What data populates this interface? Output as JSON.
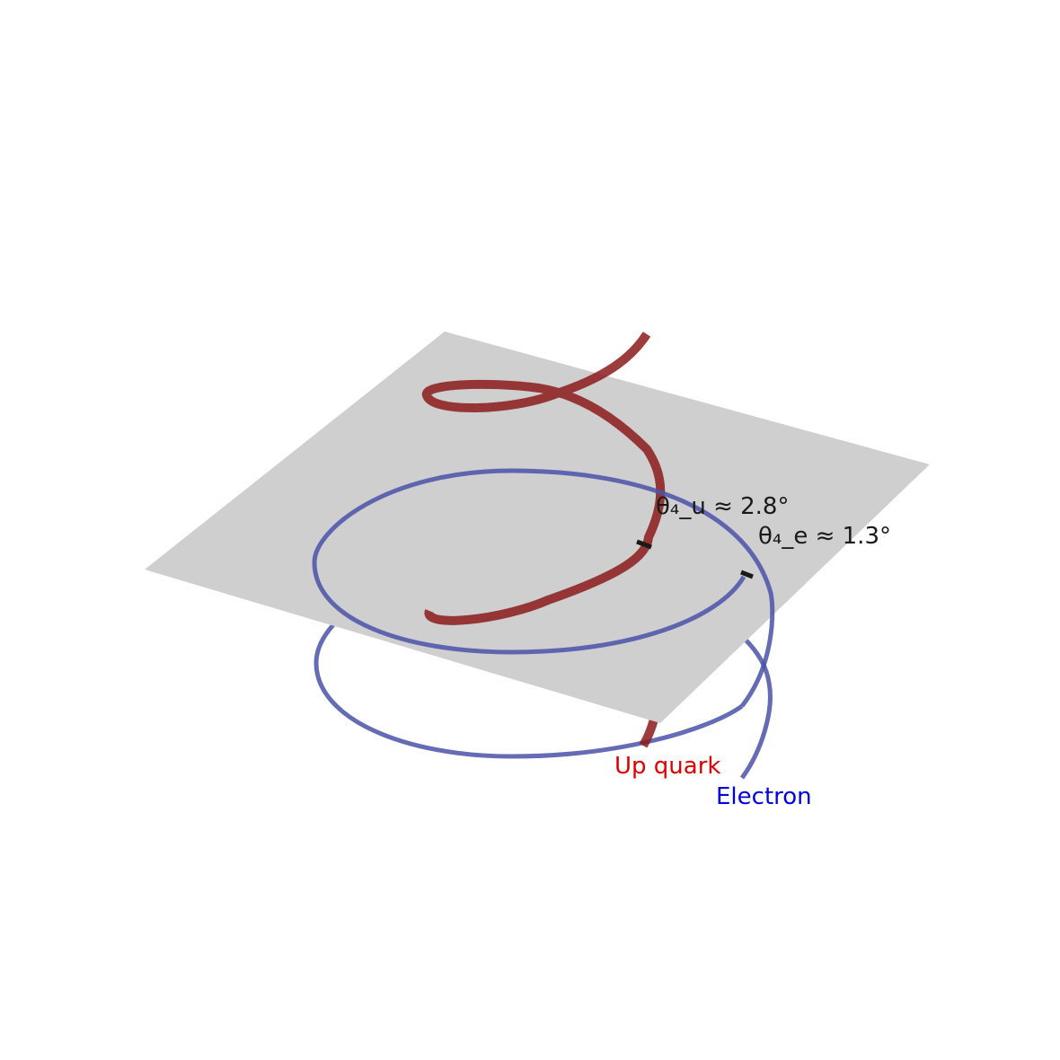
{
  "colors": {
    "background": "#ffffff",
    "plane": "#cfcfcf",
    "up_quark": "#8b1a1a",
    "electron": "#4a52a8",
    "up_quark_label": "#e00000",
    "electron_label": "#0000e0",
    "annotation": "#1a1a1a"
  },
  "labels": {
    "up_quark": "Up quark",
    "electron": "Electron",
    "theta_u": "θ₄_u ≈ 2.8°",
    "theta_e": "θ₄_e ≈ 1.3°"
  }
}
